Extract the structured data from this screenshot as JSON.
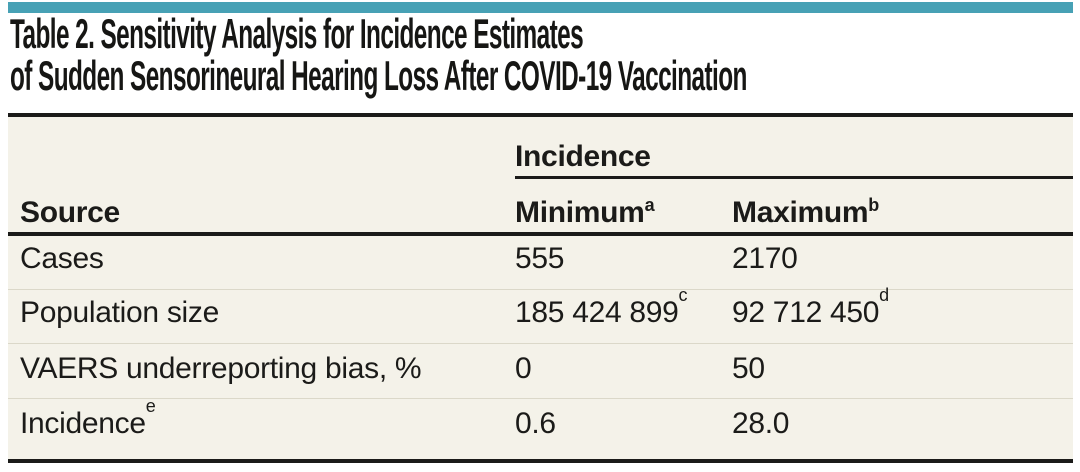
{
  "title": {
    "line1": "Table 2. Sensitivity Analysis for Incidence Estimates",
    "line2": "of Sudden Sensorineural Hearing Loss After COVID-19 Vaccination"
  },
  "colors": {
    "accent_teal": "#47a1b5",
    "table_background": "#f4f2e9",
    "rule_dark": "#1b1b19",
    "rule_light": "#dbd8c9"
  },
  "table": {
    "group_header": "Incidence",
    "col_source": "Source",
    "col_min": "Minimum",
    "col_min_footnote": "a",
    "col_max": "Maximum",
    "col_max_footnote": "b",
    "rows": [
      {
        "label": "Cases",
        "label_footnote": "",
        "min": "555",
        "min_footnote": "",
        "max": "2170",
        "max_footnote": ""
      },
      {
        "label": "Population size",
        "label_footnote": "",
        "min": "185 424 899",
        "min_footnote": "c",
        "max": "92 712 450",
        "max_footnote": "d"
      },
      {
        "label": "VAERS underreporting bias, %",
        "label_footnote": "",
        "min": "0",
        "min_footnote": "",
        "max": "50",
        "max_footnote": ""
      },
      {
        "label": "Incidence",
        "label_footnote": "e",
        "min": "0.6",
        "min_footnote": "",
        "max": "28.0",
        "max_footnote": ""
      }
    ]
  }
}
